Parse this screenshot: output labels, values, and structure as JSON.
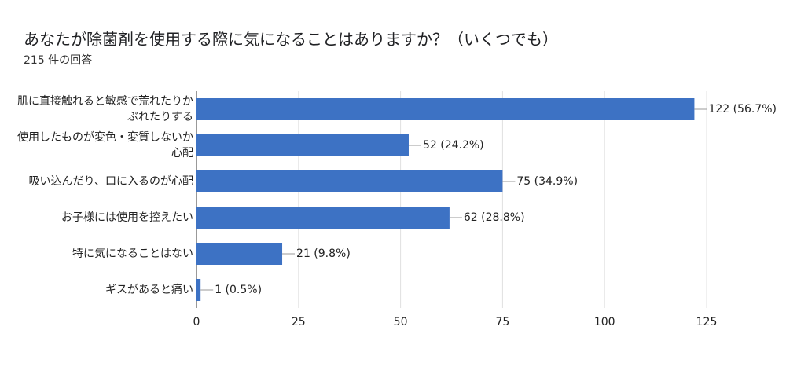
{
  "chart_data": {
    "type": "bar",
    "orientation": "horizontal",
    "title": "あなたが除菌剤を使用する際に気になることはありますか？（いくつでも）",
    "subtitle": "215 件の回答",
    "categories": [
      "肌に直接触れると敏感で荒れたりかぶれたりする",
      "使用したものが変色・変質しないか心配",
      "吸い込んだり、口に入るのが心配",
      "お子様には使用を控えたい",
      "特に気になることはない",
      "ギスがあると痛い"
    ],
    "values": [
      122,
      52,
      75,
      62,
      21,
      1
    ],
    "value_labels": [
      "122 (56.7%)",
      "52 (24.2%)",
      "75 (34.9%)",
      "62 (28.8%)",
      "21 (9.8%)",
      "1 (0.5%)"
    ],
    "color": "#3d72c4",
    "xlim": [
      0,
      125
    ],
    "xticks": [
      0,
      25,
      50,
      75,
      100,
      125
    ],
    "grid": true
  }
}
